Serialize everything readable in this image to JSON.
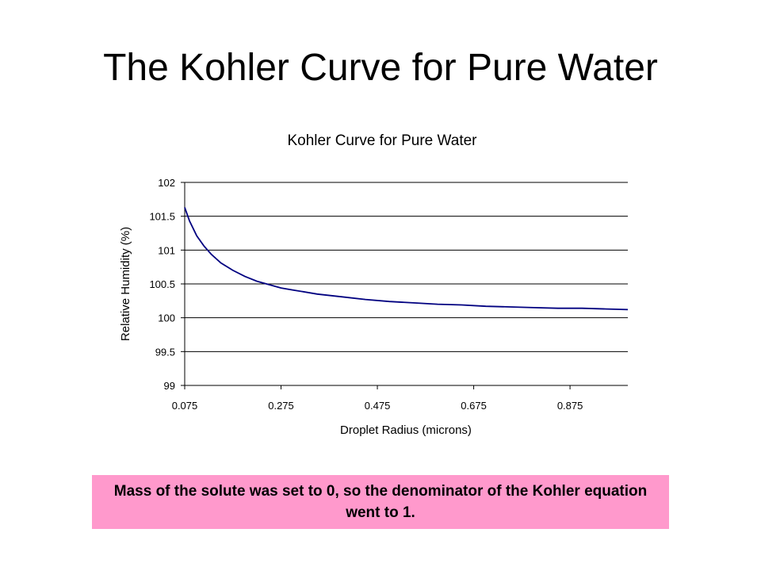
{
  "slide": {
    "title": "The Kohler Curve for Pure Water",
    "note": "Mass of the solute was set to 0, so the denominator of the Kohler equation went to 1."
  },
  "colors": {
    "line": "#000080",
    "note_background": "#ff99cc",
    "gridline": "#000000"
  },
  "chart_data": {
    "type": "line",
    "title": "Kohler Curve for Pure Water",
    "xlabel": "Droplet Radius (microns)",
    "ylabel": "Relative Humidity (%)",
    "xlim": [
      0.075,
      0.995
    ],
    "ylim": [
      99,
      102
    ],
    "x_ticks": [
      "0.075",
      "0.275",
      "0.475",
      "0.675",
      "0.875"
    ],
    "x_tick_values": [
      0.075,
      0.275,
      0.475,
      0.675,
      0.875
    ],
    "y_ticks": [
      "99",
      "99.5",
      "100",
      "100.5",
      "101",
      "101.5",
      "102"
    ],
    "y_tick_values": [
      99,
      99.5,
      100,
      100.5,
      101,
      101.5,
      102
    ],
    "grid": "horizontal",
    "legend": "none",
    "series": [
      {
        "x": [
          0.075,
          0.085,
          0.1,
          0.115,
          0.13,
          0.15,
          0.175,
          0.2,
          0.225,
          0.25,
          0.275,
          0.3,
          0.35,
          0.4,
          0.45,
          0.5,
          0.55,
          0.6,
          0.65,
          0.7,
          0.75,
          0.8,
          0.85,
          0.9,
          0.95,
          0.995
        ],
        "y": [
          101.63,
          101.43,
          101.21,
          101.06,
          100.94,
          100.81,
          100.7,
          100.61,
          100.54,
          100.49,
          100.44,
          100.41,
          100.35,
          100.31,
          100.27,
          100.24,
          100.22,
          100.2,
          100.19,
          100.17,
          100.16,
          100.15,
          100.14,
          100.14,
          100.13,
          100.12
        ]
      }
    ]
  }
}
